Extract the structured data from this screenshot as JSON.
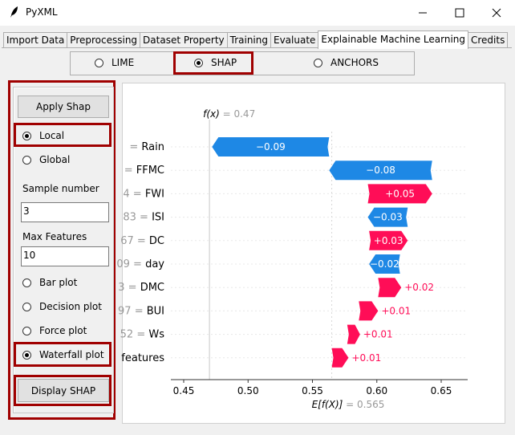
{
  "window": {
    "title": "PyXML"
  },
  "tabs": [
    "Import Data",
    "Preprocessing",
    "Dataset Property",
    "Training",
    "Evaluate",
    "Explainable Machine Learning",
    "Credits"
  ],
  "active_tab": 5,
  "methods": {
    "lime": "LIME",
    "shap": "SHAP",
    "anchors": "ANCHORS",
    "selected": "SHAP"
  },
  "left_panel": {
    "apply_label": "Apply Shap",
    "local_label": "Local",
    "global_label": "Global",
    "sample_label": "Sample number",
    "sample_value": "3",
    "max_features_label": "Max Features",
    "max_features_value": "10",
    "plot_types": [
      "Bar plot",
      "Decision plot",
      "Force plot",
      "Waterfall plot"
    ],
    "selected_plot": "Waterfall plot",
    "display_label": "Display SHAP"
  },
  "chart_data": {
    "type": "waterfall",
    "fx_label": "f(x)",
    "fx_value": "= 0.47",
    "base_label": "E[f(X)]",
    "base_value": "= 0.565",
    "feature_labels": [
      " = Rain",
      " = FFMC",
      "4 = FWI",
      "83 = ISI",
      "67 = DC",
      "09 = day",
      "3 = DMC",
      "97 = BUI",
      "52 =  Ws",
      "features"
    ],
    "bars": [
      {
        "start": 0.563,
        "end": 0.472,
        "label": "−0.09",
        "color": "#1e88e5"
      },
      {
        "start": 0.643,
        "end": 0.563,
        "label": "−0.08",
        "color": "#1e88e5"
      },
      {
        "start": 0.593,
        "end": 0.643,
        "label": "+0.05",
        "color": "#ff0d57"
      },
      {
        "start": 0.624,
        "end": 0.593,
        "label": "−0.03",
        "color": "#1e88e5"
      },
      {
        "start": 0.594,
        "end": 0.624,
        "label": "+0.03",
        "color": "#ff0d57"
      },
      {
        "start": 0.618,
        "end": 0.594,
        "label": "−0.02",
        "color": "#1e88e5"
      },
      {
        "start": 0.601,
        "end": 0.619,
        "label": "+0.02",
        "color": "#ff0d57"
      },
      {
        "start": 0.586,
        "end": 0.601,
        "label": "+0.01",
        "color": "#ff0d57"
      },
      {
        "start": 0.577,
        "end": 0.587,
        "label": "+0.01",
        "color": "#ff0d57"
      },
      {
        "start": 0.565,
        "end": 0.578,
        "label": "+0.01",
        "color": "#ff0d57"
      }
    ],
    "inside_label": [
      true,
      true,
      true,
      true,
      true,
      true,
      false,
      false,
      false,
      false
    ],
    "xticks": [
      0.45,
      0.5,
      0.55,
      0.6,
      0.65
    ],
    "xtick_labels": [
      "0.45",
      "0.50",
      "0.55",
      "0.60",
      "0.65"
    ],
    "xlim": [
      0.44,
      0.67
    ],
    "fx": 0.47,
    "base": 0.565
  }
}
